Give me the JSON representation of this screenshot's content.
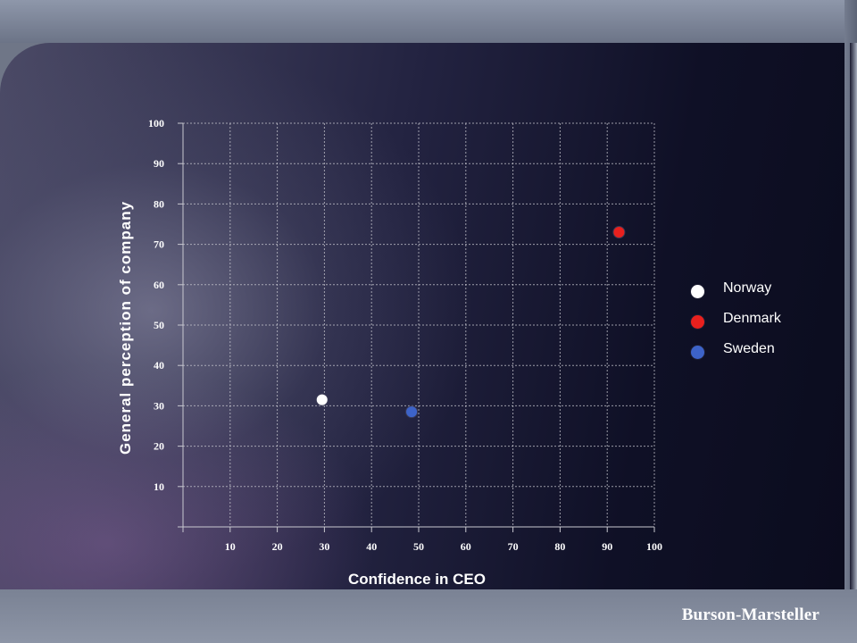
{
  "colors": {
    "norway": "#ffffff",
    "denmark": "#e8201e",
    "sweden": "#3d63c8",
    "grid": "#c8c8d0",
    "text": "#ffffff"
  },
  "brand": {
    "name": "Burson-Marsteller"
  },
  "chart_data": {
    "type": "scatter",
    "title": "",
    "xlabel": "Confidence in CEO",
    "ylabel": "General perception of company",
    "xlim": [
      0,
      100
    ],
    "ylim": [
      0,
      100
    ],
    "x_ticks": [
      10,
      20,
      30,
      40,
      50,
      60,
      70,
      80,
      90,
      100
    ],
    "y_ticks": [
      10,
      20,
      30,
      40,
      50,
      60,
      70,
      80,
      90,
      100
    ],
    "grid": true,
    "legend_position": "right",
    "series": [
      {
        "name": "Norway",
        "color": "#ffffff",
        "x": 29.5,
        "y": 31.5
      },
      {
        "name": "Denmark",
        "color": "#e8201e",
        "x": 92.5,
        "y": 73
      },
      {
        "name": "Sweden",
        "color": "#3d63c8",
        "x": 48.5,
        "y": 28.5
      }
    ]
  }
}
